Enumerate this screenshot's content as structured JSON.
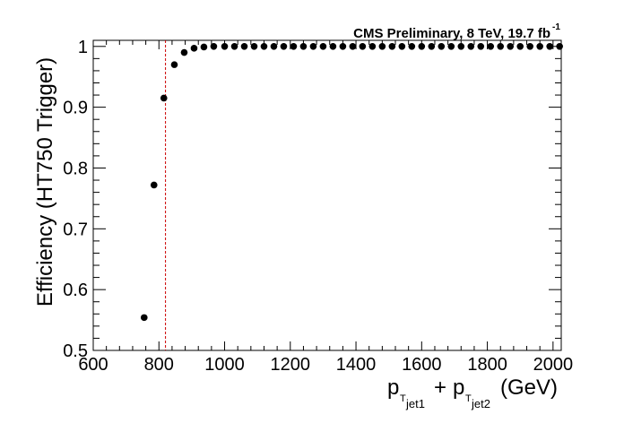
{
  "chart_data": {
    "type": "scatter",
    "title": {
      "main": "CMS Preliminary, 8 TeV, 19.7 fb",
      "superscript": "-1"
    },
    "ylabel": "Efficiency (HT750 Trigger)",
    "xlabel": {
      "p1": "p",
      "sub1": "T",
      "subsub1": "jet1",
      "plus": "+",
      "p2": "p",
      "sub2": "T",
      "subsub2": "jet2",
      "unit": "(GeV)"
    },
    "xlim": [
      600,
      2025
    ],
    "ylim": [
      0.5,
      1.01
    ],
    "x_ticks": [
      600,
      800,
      1000,
      1200,
      1400,
      1600,
      1800,
      2000
    ],
    "x_tick_labels": [
      "600",
      "800",
      "1000",
      "1200",
      "1400",
      "1600",
      "1800",
      "2000"
    ],
    "y_ticks": [
      0.5,
      0.6,
      0.7,
      0.8,
      0.9,
      1.0
    ],
    "y_tick_labels": [
      "0.5",
      "0.6",
      "0.7",
      "0.8",
      "0.9",
      "1"
    ],
    "reference_line": {
      "x": 820,
      "color": "#cc0000",
      "style": "dashed"
    },
    "marker_color": "#000000",
    "series": [
      {
        "x": [
          755,
          785,
          815,
          847,
          877,
          907,
          937,
          967,
          1000,
          1030,
          1060,
          1090,
          1120,
          1150,
          1180,
          1210,
          1240,
          1270,
          1300,
          1330,
          1360,
          1390,
          1420,
          1450,
          1480,
          1510,
          1540,
          1570,
          1600,
          1630,
          1660,
          1690,
          1720,
          1750,
          1780,
          1810,
          1840,
          1870,
          1900,
          1930,
          1960,
          1990,
          2020
        ],
        "y": [
          0.554,
          0.772,
          0.915,
          0.97,
          0.99,
          0.997,
          0.999,
          1.0,
          1.0,
          1.0,
          1.0,
          1.0,
          1.0,
          1.0,
          1.0,
          1.0,
          1.0,
          1.0,
          1.0,
          1.0,
          1.0,
          1.0,
          1.0,
          1.0,
          1.0,
          1.0,
          1.0,
          1.0,
          1.0,
          1.0,
          1.0,
          1.0,
          1.0,
          1.0,
          1.0,
          1.0,
          1.0,
          1.0,
          1.0,
          1.0,
          1.0,
          1.0,
          1.0
        ]
      }
    ]
  }
}
